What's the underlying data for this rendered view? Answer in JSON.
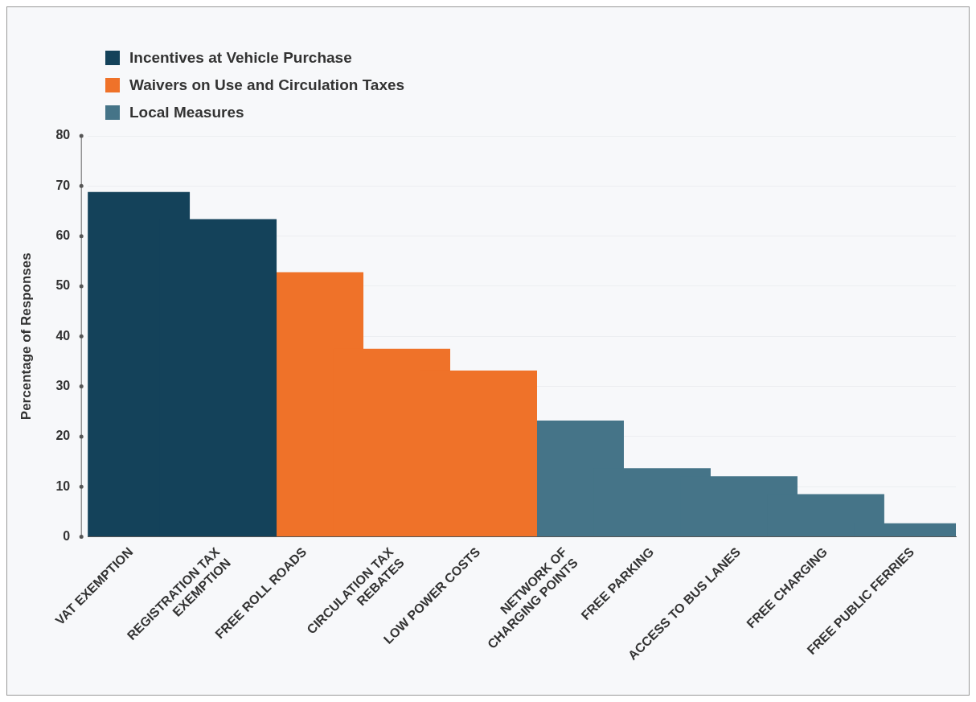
{
  "chart_data": {
    "type": "bar",
    "ylabel": "Percentage of Responses",
    "categories": [
      "VAT EXEMPTION",
      "REGISTRATION TAX EXEMPTION",
      "FREE ROLL ROADS",
      "CIRCULATION TAX REBATES",
      "LOW POWER COSTS",
      "NETWORK OF CHARGING POINTS",
      "FREE PARKING",
      "ACCESS TO BUS LANES",
      "FREE CHARGING",
      "FREE PUBLIC FERRIES"
    ],
    "series": [
      {
        "name": "Incentives at Vehicle Purchase",
        "color": "#14425a",
        "values": [
          68.8,
          63.4,
          null,
          null,
          null,
          null,
          null,
          null,
          null,
          null
        ]
      },
      {
        "name": "Waivers on Use and Circulation Taxes",
        "color": "#ef7229",
        "values": [
          null,
          null,
          52.8,
          37.5,
          33.2,
          null,
          null,
          null,
          null,
          null
        ]
      },
      {
        "name": "Local Measures",
        "color": "#457488",
        "values": [
          null,
          null,
          null,
          null,
          null,
          23.2,
          13.7,
          12.1,
          8.5,
          2.7
        ]
      }
    ],
    "ylim": [
      0,
      80
    ],
    "yticks": [
      0,
      10,
      20,
      30,
      40,
      50,
      60,
      70,
      80
    ],
    "grid": "y",
    "legend": "top left"
  }
}
